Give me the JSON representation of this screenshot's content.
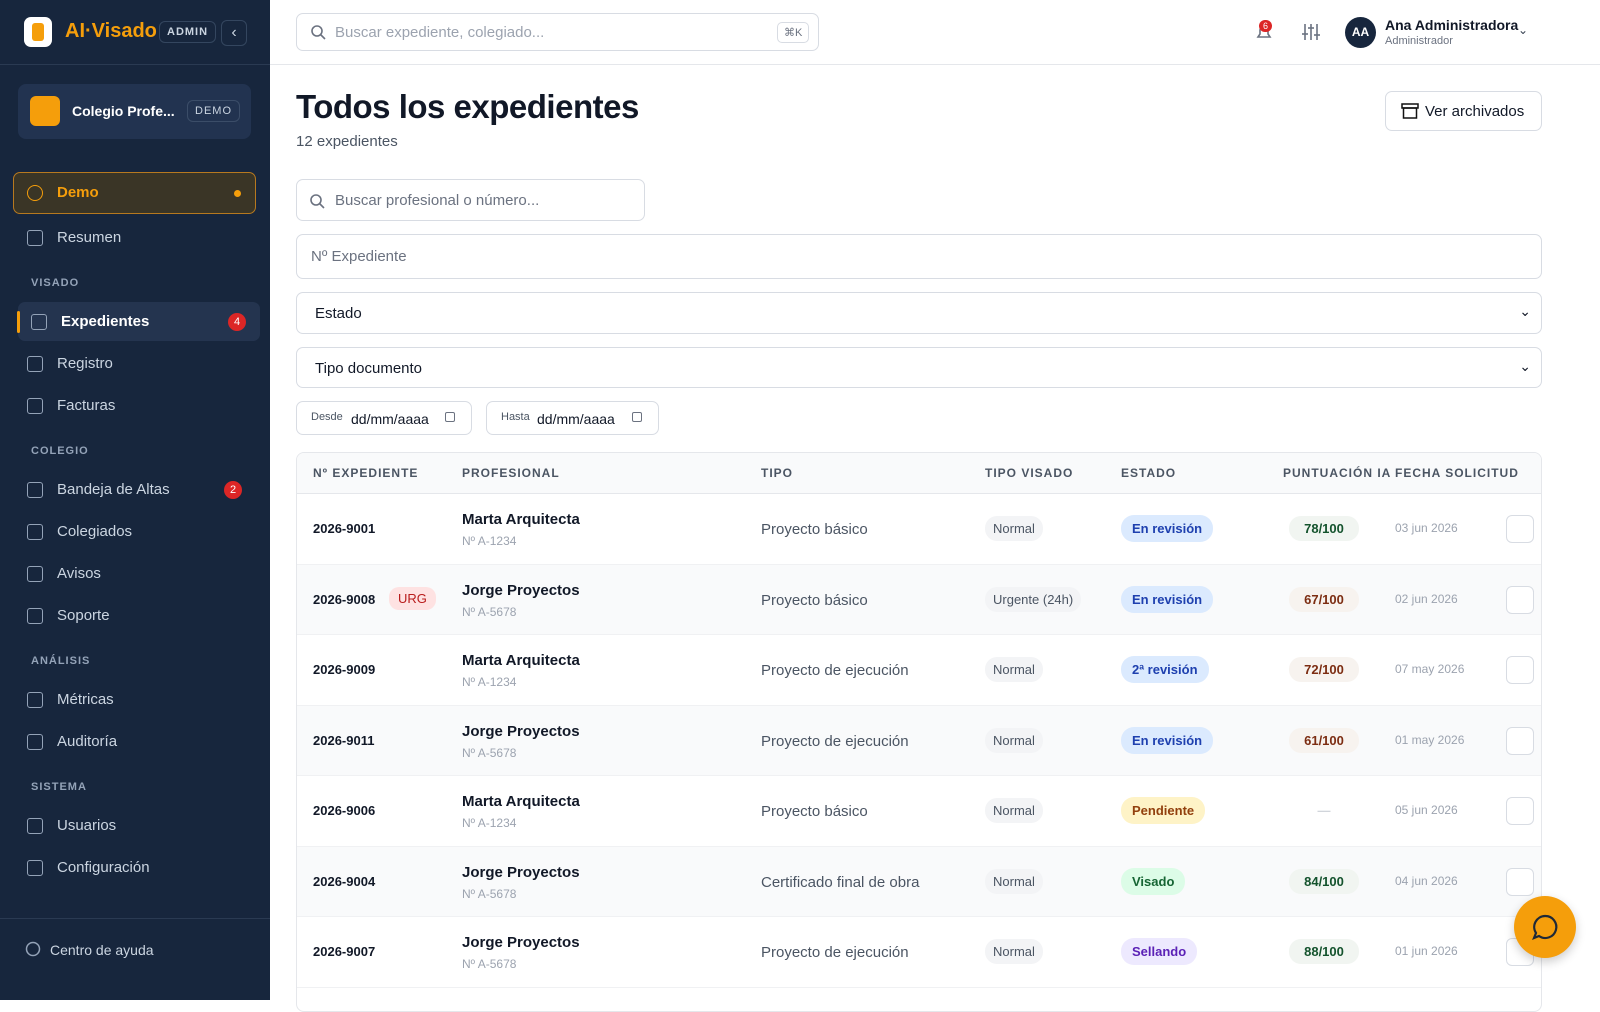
{
  "sidebar": {
    "brand": "AI·Visado",
    "role_badge": "ADMIN",
    "org": {
      "name": "Colegio Profe...",
      "badge": "DEMO"
    },
    "groups": [
      {
        "items": [
          {
            "label": "Demo"
          },
          {
            "label": "Resumen"
          }
        ]
      },
      {
        "title": "VISADO",
        "items": [
          {
            "label": "Expedientes",
            "badge": "4"
          },
          {
            "label": "Registro"
          },
          {
            "label": "Facturas"
          }
        ]
      },
      {
        "title": "COLEGIO",
        "items": [
          {
            "label": "Bandeja de Altas",
            "badge": "2"
          },
          {
            "label": "Colegiados"
          },
          {
            "label": "Avisos"
          },
          {
            "label": "Soporte"
          }
        ]
      },
      {
        "title": "ANÁLISIS",
        "items": [
          {
            "label": "Métricas"
          },
          {
            "label": "Auditoría"
          }
        ]
      },
      {
        "title": "SISTEMA",
        "items": [
          {
            "label": "Usuarios"
          },
          {
            "label": "Configuración"
          }
        ]
      }
    ],
    "footer": "Centro de ayuda"
  },
  "topbar": {
    "search": "Buscar expediente, colegiado...",
    "shortcut": "⌘K",
    "notifications": "6",
    "user": {
      "initials": "AA",
      "name": "Ana Administradora",
      "role": "Administrador"
    }
  },
  "header": {
    "title": "Todos los expedientes",
    "subtitle": "12 expedientes",
    "button": "Ver archivados"
  },
  "filters": {
    "search": "Buscar profesional o número...",
    "number": "Nº Expediente",
    "status": "Estado",
    "doc_type": "Tipo documento",
    "from_label": "Desde",
    "from_value": "dd/mm/aaaa",
    "to_label": "Hasta",
    "to_value": "dd/mm/aaaa"
  },
  "table": {
    "columns": [
      "Nº EXPEDIENTE",
      "PROFESIONAL",
      "TIPO",
      "TIPO VISADO",
      "ESTADO",
      "PUNTUACIÓN IA",
      "FECHA SOLICITUD"
    ],
    "rows": [
      {
        "id": "2026-9001",
        "name": "Marta Arquitecta",
        "number": "Nº A-1234",
        "type": "Proyecto básico",
        "visa": "Normal",
        "status": "En revisión",
        "status_color": "blue",
        "score": "78/100",
        "score_color": "green",
        "date": "03 jun 2026"
      },
      {
        "id": "2026-9008",
        "tag": "URG",
        "name": "Jorge Proyectos",
        "number": "Nº A-5678",
        "type": "Proyecto básico",
        "visa": "Urgente (24h)",
        "status": "En revisión",
        "status_color": "blue",
        "score": "67/100",
        "score_color": "brown",
        "date": "02 jun 2026"
      },
      {
        "id": "2026-9009",
        "name": "Marta Arquitecta",
        "number": "Nº A-1234",
        "type": "Proyecto de ejecución",
        "visa": "Normal",
        "status": "2ª revisión",
        "status_color": "blue",
        "score": "72/100",
        "score_color": "brown",
        "date": "07 may 2026"
      },
      {
        "id": "2026-9011",
        "name": "Jorge Proyectos",
        "number": "Nº A-5678",
        "type": "Proyecto de ejecución",
        "visa": "Normal",
        "status": "En revisión",
        "status_color": "blue",
        "score": "61/100",
        "score_color": "brown",
        "date": "01 may 2026"
      },
      {
        "id": "2026-9006",
        "name": "Marta Arquitecta",
        "number": "Nº A-1234",
        "type": "Proyecto básico",
        "visa": "Normal",
        "status": "Pendiente",
        "status_color": "yellow",
        "score": "—",
        "score_color": "gray",
        "date": "05 jun 2026"
      },
      {
        "id": "2026-9004",
        "name": "Jorge Proyectos",
        "number": "Nº A-5678",
        "type": "Certificado final de obra",
        "visa": "Normal",
        "status": "Visado",
        "status_color": "green",
        "score": "84/100",
        "score_color": "green",
        "date": "04 jun 2026"
      },
      {
        "id": "2026-9007",
        "name": "Jorge Proyectos",
        "number": "Nº A-5678",
        "type": "Proyecto de ejecución",
        "visa": "Normal",
        "status": "Sellando",
        "status_color": "purple",
        "score": "88/100",
        "score_color": "green",
        "date": "01 jun 2026"
      }
    ]
  }
}
